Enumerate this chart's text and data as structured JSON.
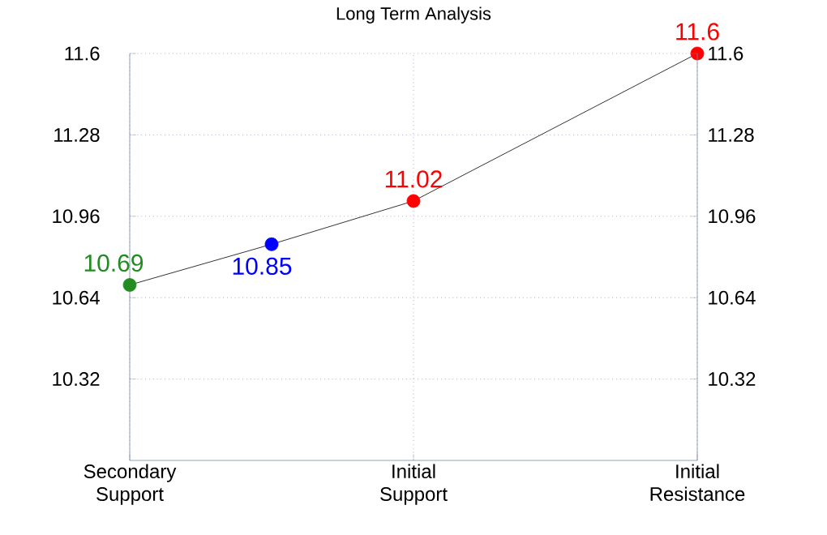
{
  "chart_data": {
    "type": "line",
    "title": "Long Term Analysis",
    "categories": [
      "Secondary Support",
      null,
      "Initial Support",
      null,
      "Initial Resistance"
    ],
    "series": [
      {
        "color": "#000000",
        "colors": [
          "#228b22",
          "#0000ff",
          "#ff0000",
          null,
          "#ff0000"
        ],
        "values": [
          10.69,
          10.85,
          11.02,
          null,
          11.6
        ]
      }
    ],
    "ylim": [
      10.0,
      11.6
    ],
    "yticks": [
      10.32,
      10.64,
      10.96,
      11.28,
      11.6
    ],
    "y2lim": [
      10.0,
      11.6
    ],
    "y2ticks": [
      10.32,
      10.64,
      10.96,
      11.28,
      11.6
    ],
    "grid": true,
    "marker": "circle",
    "line_style": "solid",
    "data_labels": true
  }
}
